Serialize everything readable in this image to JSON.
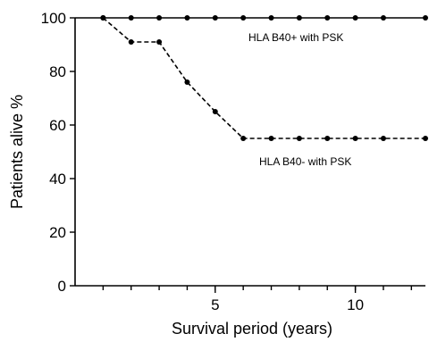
{
  "chart_data": {
    "type": "line",
    "title": "",
    "xlabel": "Survival period (years)",
    "ylabel": "Patients alive %",
    "xlim": [
      0,
      12.5
    ],
    "ylim": [
      0,
      100
    ],
    "x_ticks": [
      5,
      10
    ],
    "x_tick_labels": [
      "5",
      "10"
    ],
    "x_minor_ticks": [
      1,
      2,
      3,
      4,
      5,
      6,
      7,
      8,
      9,
      10,
      11,
      12
    ],
    "y_ticks": [
      0,
      20,
      40,
      60,
      80,
      100
    ],
    "y_tick_labels": [
      "0",
      "20",
      "40",
      "60",
      "80",
      "100"
    ],
    "grid": false,
    "legend": "none",
    "series": [
      {
        "name": "HLA B40+ with PSK",
        "line_style": "solid",
        "color": "#000000",
        "x": [
          0,
          1,
          2,
          3,
          4,
          5,
          6,
          7,
          8,
          9,
          10,
          11,
          12.5
        ],
        "y": [
          100,
          100,
          100,
          100,
          100,
          100,
          100,
          100,
          100,
          100,
          100,
          100,
          100
        ]
      },
      {
        "name": "HLA B40- with PSK",
        "line_style": "dashed",
        "color": "#000000",
        "x": [
          1,
          2,
          3,
          4,
          5,
          6,
          7,
          8,
          9,
          10,
          11,
          12.5
        ],
        "y": [
          100,
          91,
          91,
          76,
          65,
          55,
          55,
          55,
          55,
          55,
          55,
          55
        ]
      }
    ]
  }
}
